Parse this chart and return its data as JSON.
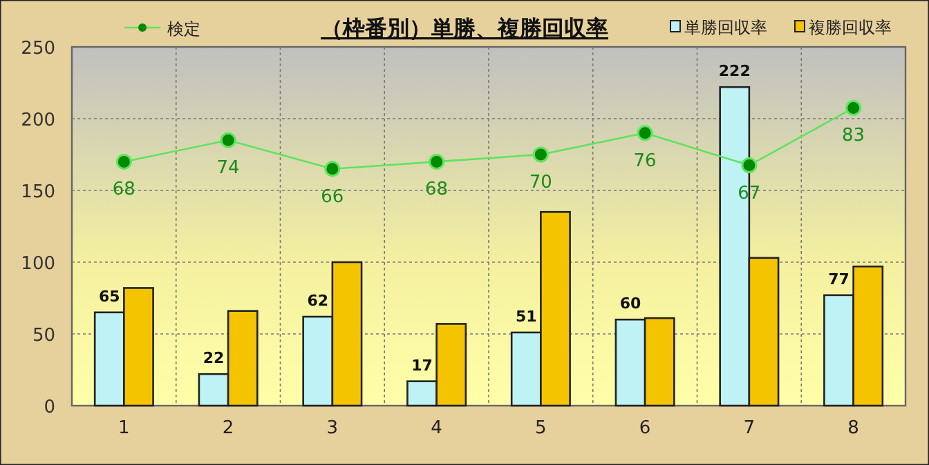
{
  "chart_data": {
    "type": "bar",
    "title": "（枠番別）単勝、複勝回収率",
    "categories": [
      "1",
      "2",
      "3",
      "4",
      "5",
      "6",
      "7",
      "8"
    ],
    "ylim": [
      0,
      250
    ],
    "yticks": [
      0,
      50,
      100,
      150,
      200,
      250
    ],
    "y2lim": [
      0,
      100
    ],
    "grid": true,
    "legend": "top",
    "series": [
      {
        "name": "検定",
        "type": "line",
        "axis": "y2",
        "marker": "circle",
        "color": "#5fe35f",
        "values": [
          68,
          74,
          66,
          68,
          70,
          76,
          67,
          83
        ],
        "value_labels": [
          "68",
          "74",
          "66",
          "68",
          "70",
          "76",
          "67",
          "83"
        ]
      },
      {
        "name": "単勝回収率",
        "color": "#bff2f5",
        "values": [
          65,
          22,
          62,
          17,
          51,
          60,
          222,
          77
        ],
        "value_labels": [
          "65",
          "22",
          "62",
          "17",
          "51",
          "60",
          "222",
          "77"
        ]
      },
      {
        "name": "複勝回収率",
        "color": "#f5c400",
        "values": [
          82,
          66,
          100,
          57,
          135,
          61,
          103,
          97
        ]
      }
    ]
  }
}
